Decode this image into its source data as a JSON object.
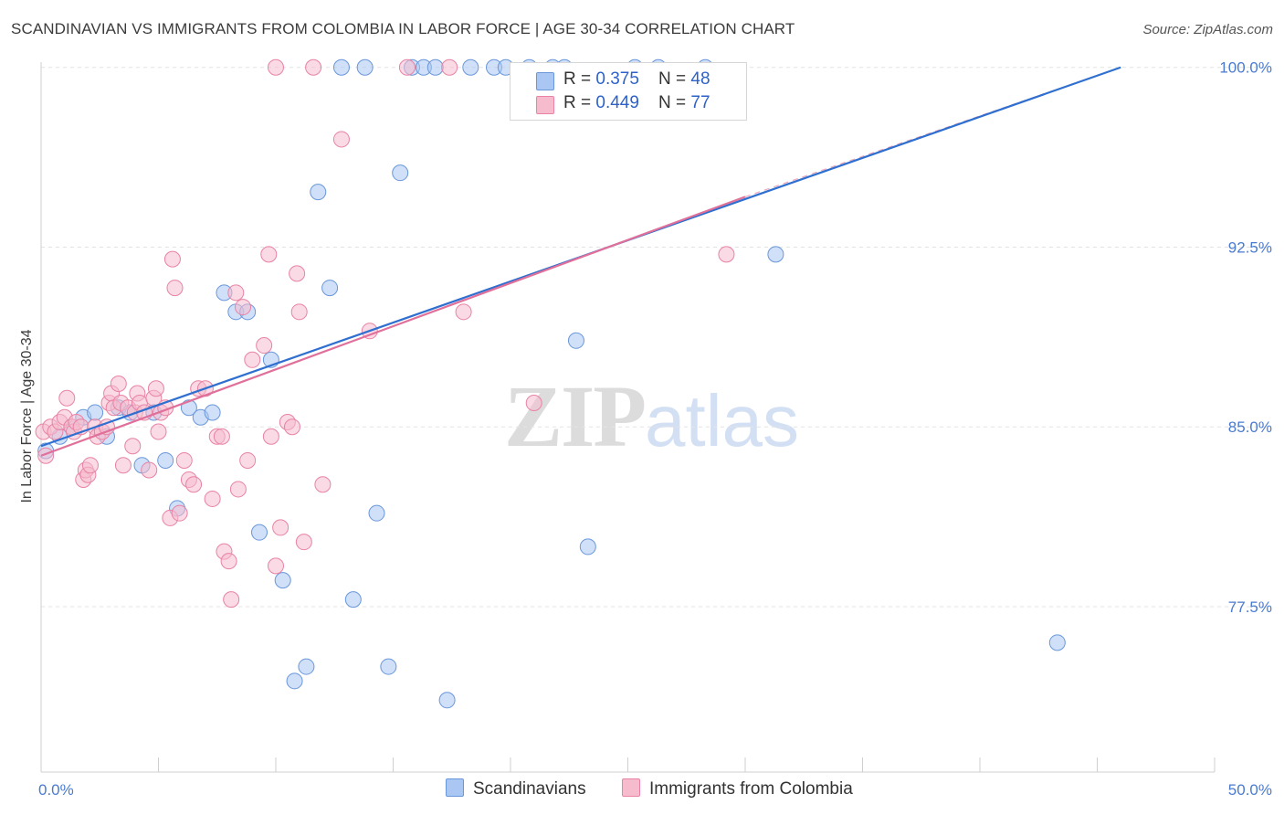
{
  "title": "SCANDINAVIAN VS IMMIGRANTS FROM COLOMBIA IN LABOR FORCE | AGE 30-34 CORRELATION CHART",
  "source": "Source: ZipAtlas.com",
  "watermark": {
    "zip": "ZIP",
    "atlas": "atlas"
  },
  "legend": {
    "rows": [
      {
        "r_label": "R = ",
        "r_value": "0.375",
        "n_label": "N = ",
        "n_value": "48",
        "color": "#a9c7f2",
        "border": "#6a97da"
      },
      {
        "r_label": "R = ",
        "r_value": "0.449",
        "n_label": "N = ",
        "n_value": "77",
        "color": "#f6bccd",
        "border": "#e883a4"
      }
    ]
  },
  "bottom_legend": [
    {
      "label": "Scandinavians",
      "color": "#a9c7f2",
      "border": "#6a97da"
    },
    {
      "label": "Immigrants from Colombia",
      "color": "#f6bccd",
      "border": "#e883a4"
    }
  ],
  "chart_data": {
    "type": "scatter",
    "title": "SCANDINAVIAN VS IMMIGRANTS FROM COLOMBIA IN LABOR FORCE | AGE 30-34 CORRELATION CHART",
    "xlabel": "",
    "ylabel": "In Labor Force | Age 30-34",
    "xlim": [
      0,
      50
    ],
    "ylim": [
      70.6,
      100.6
    ],
    "x_tick_labels": [
      "0.0%",
      "50.0%"
    ],
    "y_ticks": [
      77.5,
      85.0,
      92.5,
      100.0
    ],
    "y_tick_labels": [
      "77.5%",
      "85.0%",
      "92.5%",
      "100.0%"
    ],
    "grid": true,
    "legend_position": "top-center",
    "series": [
      {
        "name": "Scandinavians",
        "color": "#a9c7f2",
        "stroke": "#6a97da",
        "trend": {
          "x": [
            0,
            46.0
          ],
          "y": [
            84.2,
            100.0
          ],
          "color": "#2e6fd0"
        },
        "points": [
          [
            0.2,
            84.0
          ],
          [
            0.8,
            84.6
          ],
          [
            1.3,
            85.0
          ],
          [
            1.8,
            85.4
          ],
          [
            2.3,
            85.6
          ],
          [
            2.8,
            84.6
          ],
          [
            3.3,
            85.8
          ],
          [
            3.8,
            85.6
          ],
          [
            4.3,
            83.4
          ],
          [
            4.8,
            85.6
          ],
          [
            5.3,
            83.6
          ],
          [
            5.8,
            81.6
          ],
          [
            6.3,
            85.8
          ],
          [
            6.8,
            85.4
          ],
          [
            7.3,
            85.6
          ],
          [
            7.8,
            90.6
          ],
          [
            8.3,
            89.8
          ],
          [
            8.8,
            89.8
          ],
          [
            9.3,
            80.6
          ],
          [
            9.8,
            87.8
          ],
          [
            10.3,
            78.6
          ],
          [
            10.8,
            74.4
          ],
          [
            11.3,
            75.0
          ],
          [
            11.8,
            94.8
          ],
          [
            12.3,
            90.8
          ],
          [
            12.8,
            100.0
          ],
          [
            13.3,
            77.8
          ],
          [
            13.8,
            100.0
          ],
          [
            14.3,
            81.4
          ],
          [
            14.8,
            75.0
          ],
          [
            15.3,
            95.6
          ],
          [
            15.8,
            100.0
          ],
          [
            16.3,
            100.0
          ],
          [
            16.8,
            100.0
          ],
          [
            17.3,
            73.6
          ],
          [
            18.3,
            100.0
          ],
          [
            19.3,
            100.0
          ],
          [
            19.8,
            100.0
          ],
          [
            20.8,
            100.0
          ],
          [
            21.8,
            100.0
          ],
          [
            22.3,
            100.0
          ],
          [
            22.8,
            88.6
          ],
          [
            23.3,
            80.0
          ],
          [
            25.3,
            100.0
          ],
          [
            26.3,
            100.0
          ],
          [
            28.3,
            100.0
          ],
          [
            31.3,
            92.2
          ],
          [
            43.3,
            76.0
          ]
        ]
      },
      {
        "name": "Immigrants from Colombia",
        "color": "#f6bccd",
        "stroke": "#e883a4",
        "trend": {
          "x": [
            0,
            30.0
          ],
          "y": [
            83.8,
            94.6
          ],
          "color": "#e0709a"
        },
        "trend_dashed": {
          "x": [
            30.0,
            46.0
          ],
          "y": [
            94.6,
            100.0
          ],
          "color": "#e9a7bd"
        },
        "points": [
          [
            0.1,
            84.8
          ],
          [
            0.2,
            83.8
          ],
          [
            0.4,
            85.0
          ],
          [
            0.6,
            84.8
          ],
          [
            0.8,
            85.2
          ],
          [
            1.0,
            85.4
          ],
          [
            1.1,
            86.2
          ],
          [
            1.3,
            85.0
          ],
          [
            1.4,
            84.8
          ],
          [
            1.5,
            85.2
          ],
          [
            1.7,
            85.0
          ],
          [
            1.8,
            82.8
          ],
          [
            1.9,
            83.2
          ],
          [
            2.0,
            83.0
          ],
          [
            2.1,
            83.4
          ],
          [
            2.3,
            85.0
          ],
          [
            2.4,
            84.6
          ],
          [
            2.6,
            84.8
          ],
          [
            2.8,
            85.0
          ],
          [
            2.9,
            86.0
          ],
          [
            3.0,
            86.4
          ],
          [
            3.1,
            85.8
          ],
          [
            3.3,
            86.8
          ],
          [
            3.4,
            86.0
          ],
          [
            3.5,
            83.4
          ],
          [
            3.7,
            85.8
          ],
          [
            3.9,
            84.2
          ],
          [
            4.0,
            85.6
          ],
          [
            4.1,
            86.4
          ],
          [
            4.2,
            86.0
          ],
          [
            4.4,
            85.6
          ],
          [
            4.6,
            83.2
          ],
          [
            4.8,
            86.2
          ],
          [
            4.9,
            86.6
          ],
          [
            5.0,
            84.8
          ],
          [
            5.1,
            85.6
          ],
          [
            5.3,
            85.8
          ],
          [
            5.5,
            81.2
          ],
          [
            5.6,
            92.0
          ],
          [
            5.7,
            90.8
          ],
          [
            5.9,
            81.4
          ],
          [
            6.1,
            83.6
          ],
          [
            6.3,
            82.8
          ],
          [
            6.5,
            82.6
          ],
          [
            6.7,
            86.6
          ],
          [
            7.0,
            86.6
          ],
          [
            7.3,
            82.0
          ],
          [
            7.5,
            84.6
          ],
          [
            7.7,
            84.6
          ],
          [
            7.8,
            79.8
          ],
          [
            8.0,
            79.4
          ],
          [
            8.1,
            77.8
          ],
          [
            8.3,
            90.6
          ],
          [
            8.4,
            82.4
          ],
          [
            8.6,
            90.0
          ],
          [
            8.8,
            83.6
          ],
          [
            9.0,
            87.8
          ],
          [
            9.5,
            88.4
          ],
          [
            9.7,
            92.2
          ],
          [
            9.8,
            84.6
          ],
          [
            10.0,
            79.2
          ],
          [
            10.2,
            80.8
          ],
          [
            10.5,
            85.2
          ],
          [
            10.7,
            85.0
          ],
          [
            10.9,
            91.4
          ],
          [
            11.0,
            89.8
          ],
          [
            11.2,
            80.2
          ],
          [
            11.6,
            100.0
          ],
          [
            12.0,
            82.6
          ],
          [
            12.8,
            97.0
          ],
          [
            14.0,
            89.0
          ],
          [
            15.6,
            100.0
          ],
          [
            17.4,
            100.0
          ],
          [
            18.0,
            89.8
          ],
          [
            21.0,
            86.0
          ],
          [
            29.2,
            92.2
          ],
          [
            10.0,
            100.0
          ]
        ]
      }
    ]
  }
}
